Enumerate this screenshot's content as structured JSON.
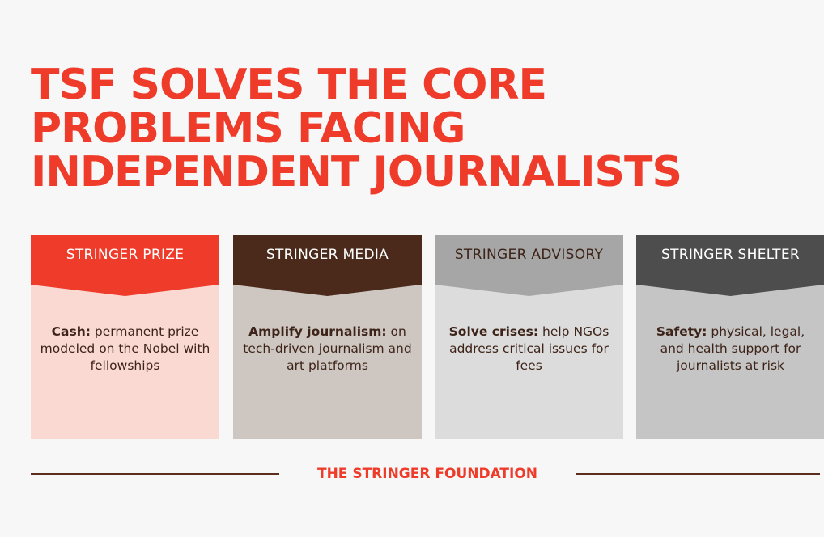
{
  "title": {
    "lines": [
      "TSF SOLVES THE CORE",
      "PROBLEMS FACING",
      "INDEPENDENT JOURNALISTS"
    ],
    "color": "#ee3b2a"
  },
  "cards": [
    {
      "heading": "STRINGER PRIZE",
      "lead": "Cash:",
      "text": " permanent prize modeled on the Nobel with fellowships",
      "head_color": "#ee3b2a",
      "head_text_color": "#ffffff",
      "body_color": "#fbd9d3"
    },
    {
      "heading": "STRINGER MEDIA",
      "lead": "Amplify journalism:",
      "text": " on tech-driven journalism and art platforms",
      "head_color": "#4b2a1c",
      "head_text_color": "#ffffff",
      "body_color": "#cdc6c1"
    },
    {
      "heading": "STRINGER ADVISORY",
      "lead": "Solve crises:",
      "text": " help NGOs address critical issues for fees",
      "head_color": "#a6a6a6",
      "head_text_color": "#3d2318",
      "body_color": "#dcdcdc"
    },
    {
      "heading": "STRINGER SHELTER",
      "lead": "Safety:",
      "text": " physical, legal, and health support for journalists at risk",
      "head_color": "#4d4d4d",
      "head_text_color": "#ffffff",
      "body_color": "#c5c5c5"
    }
  ],
  "footer": {
    "label": "THE STRINGER FOUNDATION",
    "rule_color": "#5b2d1f"
  }
}
